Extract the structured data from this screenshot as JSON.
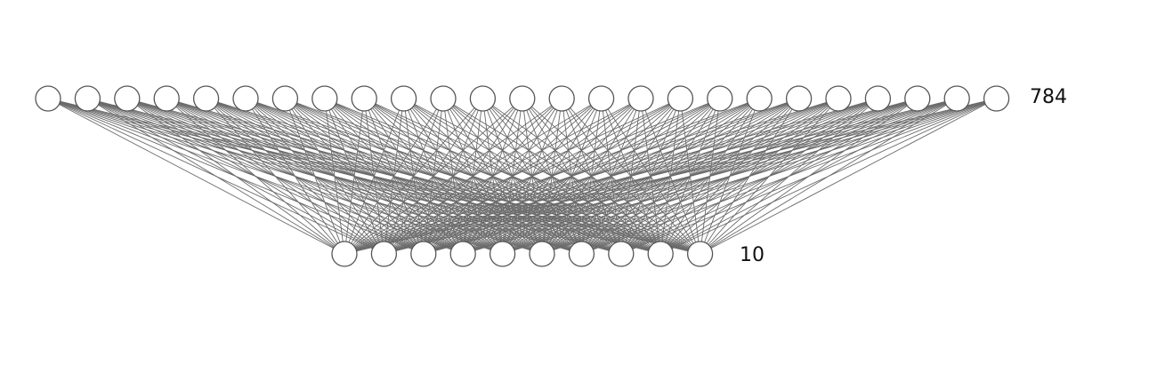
{
  "layers": [
    {
      "id": "input",
      "count_label": "784",
      "nodes_shown": 25
    },
    {
      "id": "output",
      "count_label": "10",
      "nodes_shown": 10
    }
  ],
  "colors": {
    "edge": "#6b6b6b",
    "node_fill": "#ffffff",
    "node_stroke": "#555555",
    "label": "#111111"
  }
}
